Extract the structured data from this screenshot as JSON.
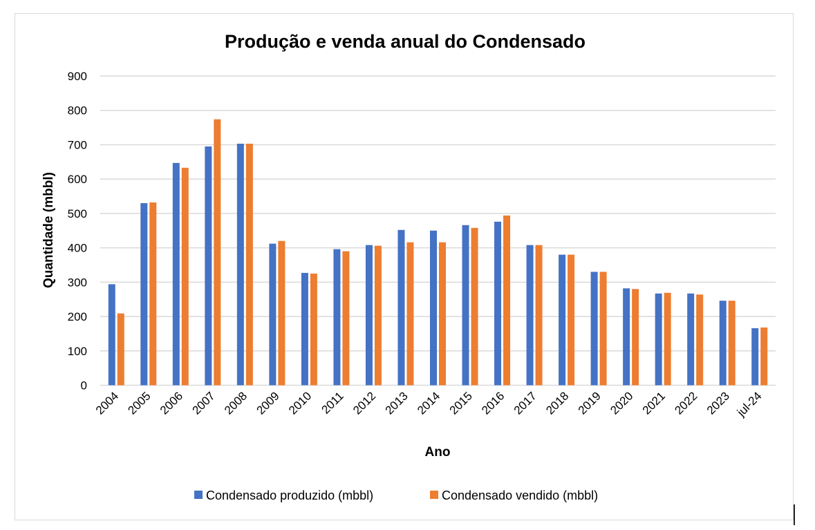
{
  "chart_data": {
    "type": "bar",
    "title": "Produção e venda anual do Condensado",
    "xlabel": "Ano",
    "ylabel": "Quantidade (mbbl)",
    "ylim": [
      0,
      900
    ],
    "yticks": [
      "0",
      "100",
      "200",
      "300",
      "400",
      "500",
      "600",
      "700",
      "800",
      "900"
    ],
    "ytick_values": [
      0,
      100,
      200,
      300,
      400,
      500,
      600,
      700,
      800,
      900
    ],
    "grid": true,
    "legend_position": "bottom",
    "categories": [
      "2004",
      "2005",
      "2006",
      "2007",
      "2008",
      "2009",
      "2010",
      "2011",
      "2012",
      "2013",
      "2014",
      "2015",
      "2016",
      "2017",
      "2018",
      "2019",
      "2020",
      "2021",
      "2022",
      "2023",
      "jul-24"
    ],
    "series": [
      {
        "name": "Condensado produzido (mbbl)",
        "color": "#4472c4",
        "values": [
          294,
          530,
          647,
          695,
          703,
          412,
          327,
          396,
          408,
          452,
          450,
          466,
          476,
          408,
          380,
          330,
          282,
          267,
          267,
          246,
          166
        ]
      },
      {
        "name": "Condensado vendido (mbbl)",
        "color": "#ed7d31",
        "values": [
          209,
          532,
          633,
          774,
          703,
          420,
          325,
          390,
          406,
          416,
          416,
          458,
          494,
          408,
          380,
          330,
          280,
          269,
          264,
          246,
          168
        ]
      }
    ]
  }
}
